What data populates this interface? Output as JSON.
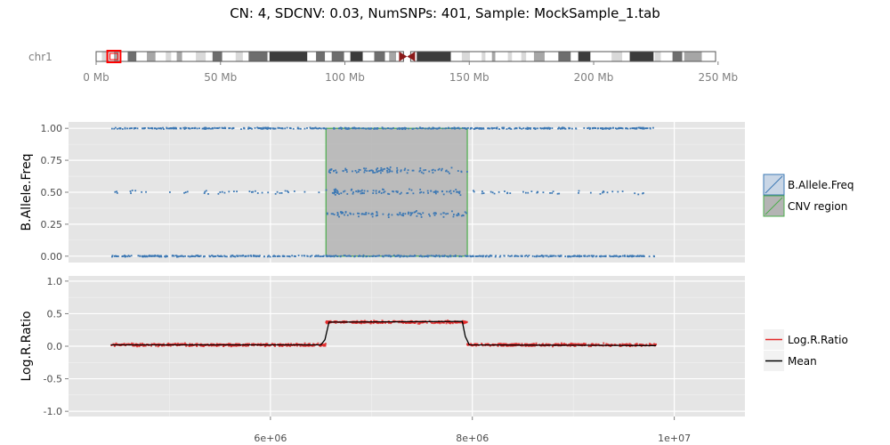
{
  "title": "CN: 4, SDCNV: 0.03, NumSNPs: 401, Sample: MockSample_1.tab",
  "ideogram": {
    "chromosome": "chr1",
    "ticks": [
      "0 Mb",
      "50 Mb",
      "100 Mb",
      "150 Mb",
      "200 Mb",
      "250 Mb"
    ],
    "tick_values_mb": [
      0,
      50,
      100,
      150,
      200,
      250
    ],
    "range_mb": [
      0,
      249
    ],
    "highlight_mb": [
      4.5,
      9.8
    ],
    "centromere_mb": 125,
    "colors": {
      "highlight": "#ff0000",
      "centromere": "#8b1a1a"
    },
    "bands": [
      {
        "start": 0,
        "end": 2.3,
        "stain": "white"
      },
      {
        "start": 2.3,
        "end": 5.4,
        "stain": "lightgray"
      },
      {
        "start": 5.4,
        "end": 7.2,
        "stain": "white"
      },
      {
        "start": 7.2,
        "end": 9.2,
        "stain": "midgray"
      },
      {
        "start": 9.2,
        "end": 12.7,
        "stain": "white"
      },
      {
        "start": 12.7,
        "end": 16.2,
        "stain": "darkgray"
      },
      {
        "start": 16.2,
        "end": 20.4,
        "stain": "white"
      },
      {
        "start": 20.4,
        "end": 23.9,
        "stain": "midgray"
      },
      {
        "start": 23.9,
        "end": 28.0,
        "stain": "white"
      },
      {
        "start": 28.0,
        "end": 30.2,
        "stain": "lightgray"
      },
      {
        "start": 30.2,
        "end": 32.4,
        "stain": "white"
      },
      {
        "start": 32.4,
        "end": 34.6,
        "stain": "midgray"
      },
      {
        "start": 34.6,
        "end": 40.1,
        "stain": "white"
      },
      {
        "start": 40.1,
        "end": 44.1,
        "stain": "lightgray"
      },
      {
        "start": 44.1,
        "end": 46.8,
        "stain": "white"
      },
      {
        "start": 46.8,
        "end": 50.7,
        "stain": "darkgray"
      },
      {
        "start": 50.7,
        "end": 56.1,
        "stain": "white"
      },
      {
        "start": 56.1,
        "end": 59.0,
        "stain": "lightgray"
      },
      {
        "start": 59.0,
        "end": 61.3,
        "stain": "white"
      },
      {
        "start": 61.3,
        "end": 68.9,
        "stain": "darkgray"
      },
      {
        "start": 68.9,
        "end": 69.7,
        "stain": "white"
      },
      {
        "start": 69.7,
        "end": 84.9,
        "stain": "black"
      },
      {
        "start": 84.9,
        "end": 88.4,
        "stain": "white"
      },
      {
        "start": 88.4,
        "end": 92.0,
        "stain": "darkgray"
      },
      {
        "start": 92.0,
        "end": 94.7,
        "stain": "white"
      },
      {
        "start": 94.7,
        "end": 99.7,
        "stain": "darkgray"
      },
      {
        "start": 99.7,
        "end": 102.2,
        "stain": "white"
      },
      {
        "start": 102.2,
        "end": 107.2,
        "stain": "black"
      },
      {
        "start": 107.2,
        "end": 111.8,
        "stain": "white"
      },
      {
        "start": 111.8,
        "end": 116.1,
        "stain": "darkgray"
      },
      {
        "start": 116.1,
        "end": 117.8,
        "stain": "white"
      },
      {
        "start": 117.8,
        "end": 120.6,
        "stain": "midgray"
      },
      {
        "start": 120.6,
        "end": 121.5,
        "stain": "white"
      },
      {
        "start": 121.5,
        "end": 125.0,
        "stain": "acen"
      },
      {
        "start": 125.0,
        "end": 128.9,
        "stain": "acen"
      },
      {
        "start": 128.9,
        "end": 142.6,
        "stain": "black"
      },
      {
        "start": 142.6,
        "end": 147.0,
        "stain": "white"
      },
      {
        "start": 147.0,
        "end": 150.3,
        "stain": "lightgray"
      },
      {
        "start": 150.3,
        "end": 155.0,
        "stain": "white"
      },
      {
        "start": 155.0,
        "end": 156.5,
        "stain": "lightgray"
      },
      {
        "start": 156.5,
        "end": 159.1,
        "stain": "white"
      },
      {
        "start": 159.1,
        "end": 160.5,
        "stain": "midgray"
      },
      {
        "start": 160.5,
        "end": 165.5,
        "stain": "white"
      },
      {
        "start": 165.5,
        "end": 167.2,
        "stain": "lightgray"
      },
      {
        "start": 167.2,
        "end": 170.9,
        "stain": "white"
      },
      {
        "start": 170.9,
        "end": 172.9,
        "stain": "lightgray"
      },
      {
        "start": 172.9,
        "end": 176.0,
        "stain": "white"
      },
      {
        "start": 176.0,
        "end": 180.3,
        "stain": "midgray"
      },
      {
        "start": 180.3,
        "end": 185.8,
        "stain": "white"
      },
      {
        "start": 185.8,
        "end": 190.8,
        "stain": "darkgray"
      },
      {
        "start": 190.8,
        "end": 193.8,
        "stain": "white"
      },
      {
        "start": 193.8,
        "end": 198.7,
        "stain": "black"
      },
      {
        "start": 198.7,
        "end": 207.2,
        "stain": "white"
      },
      {
        "start": 207.2,
        "end": 211.5,
        "stain": "lightgray"
      },
      {
        "start": 211.5,
        "end": 214.5,
        "stain": "white"
      },
      {
        "start": 214.5,
        "end": 224.1,
        "stain": "black"
      },
      {
        "start": 224.1,
        "end": 224.6,
        "stain": "white"
      },
      {
        "start": 224.6,
        "end": 227.0,
        "stain": "lightgray"
      },
      {
        "start": 227.0,
        "end": 231.7,
        "stain": "white"
      },
      {
        "start": 231.7,
        "end": 235.6,
        "stain": "darkgray"
      },
      {
        "start": 235.6,
        "end": 236.4,
        "stain": "white"
      },
      {
        "start": 236.4,
        "end": 243.5,
        "stain": "midgray"
      },
      {
        "start": 243.5,
        "end": 249.0,
        "stain": "white"
      }
    ],
    "stain_colors": {
      "white": "#ffffff",
      "lightgray": "#d9d9d9",
      "midgray": "#a6a6a6",
      "darkgray": "#6e6e6e",
      "black": "#3c3c3c",
      "acen": "#8b1a1a"
    }
  },
  "legend": {
    "baf_label": "B.Allele.Freq",
    "cnv_label": "CNV region",
    "lrr_label": "Log.R.Ratio",
    "mean_label": "Mean"
  },
  "chart_data": [
    {
      "type": "scatter",
      "ylabel": "B.Allele.Freq",
      "xlim": [
        4000000,
        10700000
      ],
      "ylim": [
        -0.05,
        1.05
      ],
      "x_ticks": [
        6000000,
        8000000,
        10000000
      ],
      "y_ticks": [
        0.0,
        0.25,
        0.5,
        0.75,
        1.0
      ],
      "y_tick_labels": [
        "0.00",
        "0.25",
        "0.50",
        "0.75",
        "1.00"
      ],
      "data_range": [
        4420000,
        9820000
      ],
      "cnv_region": {
        "xmin": 6550000,
        "xmax": 7950000,
        "ymin": 0,
        "ymax": 1
      },
      "point_bands": [
        {
          "y": 1.0,
          "spread": 0.008,
          "density": "high",
          "region": "all"
        },
        {
          "y": 0.0,
          "spread": 0.008,
          "density": "high",
          "region": "all"
        },
        {
          "y": 0.5,
          "spread": 0.02,
          "density": "sparse",
          "region": "outside-cnv"
        },
        {
          "y": 0.33,
          "spread": 0.03,
          "density": "medium",
          "region": "cnv"
        },
        {
          "y": 0.5,
          "spread": 0.03,
          "density": "medium",
          "region": "cnv"
        },
        {
          "y": 0.67,
          "spread": 0.03,
          "density": "medium",
          "region": "cnv"
        }
      ],
      "grid": true,
      "colors": {
        "points": "#3c78b4",
        "cnv_fill": "#b4b4b4",
        "cnv_border": "#4cae4c"
      }
    },
    {
      "type": "line",
      "ylabel": "Log.R.Ratio",
      "xlim": [
        4000000,
        10700000
      ],
      "ylim": [
        -1.08,
        1.08
      ],
      "x_ticks": [
        6000000,
        8000000,
        10000000
      ],
      "x_tick_labels": [
        "6e+06",
        "8e+06",
        "1e+07"
      ],
      "y_ticks": [
        -1.0,
        -0.5,
        0.0,
        0.5,
        1.0
      ],
      "y_tick_labels": [
        "-1.0",
        "-0.5",
        "0.0",
        "0.5",
        "1.0"
      ],
      "series": [
        {
          "name": "Log.R.Ratio",
          "segments": [
            {
              "x": [
                4420000,
                6550000
              ],
              "y": 0.02,
              "spread": 0.03
            },
            {
              "x": [
                6550000,
                7950000
              ],
              "y": 0.37,
              "spread": 0.03
            },
            {
              "x": [
                7950000,
                9820000
              ],
              "y": 0.02,
              "spread": 0.03
            }
          ]
        },
        {
          "name": "Mean",
          "x": [
            4420000,
            6500000,
            6540000,
            6580000,
            7900000,
            7930000,
            7970000,
            9820000
          ],
          "y": [
            0.02,
            0.02,
            0.1,
            0.37,
            0.38,
            0.15,
            0.02,
            0.01
          ]
        }
      ],
      "grid": true,
      "colors": {
        "points": "#e32a2a",
        "mean": "#000000"
      }
    }
  ]
}
